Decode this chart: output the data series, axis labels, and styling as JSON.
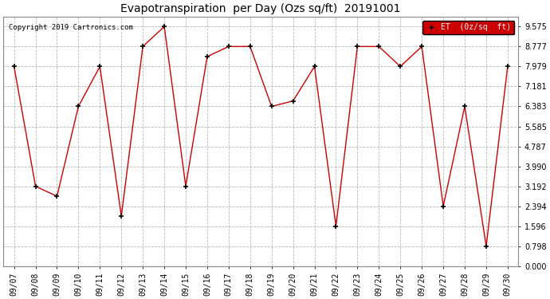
{
  "title": "Evapotranspiration  per Day (Ozs sq/ft)  20191001",
  "copyright": "Copyright 2019 Cartronics.com",
  "legend_label": "ET  (0z/sq  ft)",
  "dates": [
    "09/07",
    "09/08",
    "09/09",
    "09/10",
    "09/11",
    "09/12",
    "09/13",
    "09/14",
    "09/15",
    "09/16",
    "09/17",
    "09/18",
    "09/19",
    "09/20",
    "09/21",
    "09/22",
    "09/23",
    "09/24",
    "09/25",
    "09/26",
    "09/27",
    "09/28",
    "09/29",
    "09/30"
  ],
  "values": [
    7.979,
    3.192,
    2.793,
    6.383,
    7.979,
    2.0,
    8.777,
    9.575,
    3.192,
    8.375,
    8.777,
    8.777,
    6.383,
    6.6,
    7.979,
    1.596,
    8.777,
    8.777,
    7.979,
    8.777,
    2.394,
    6.383,
    0.798,
    7.979
  ],
  "line_color": "#cc0000",
  "marker_color": "#000000",
  "background_color": "#ffffff",
  "grid_color": "#999999",
  "yticks": [
    0.0,
    0.798,
    1.596,
    2.394,
    3.192,
    3.99,
    4.787,
    5.585,
    6.383,
    7.181,
    7.979,
    8.777,
    9.575
  ],
  "ylim": [
    0.0,
    9.975
  ],
  "title_fontsize": 10,
  "legend_bg": "#cc0000",
  "legend_text_color": "#ffffff",
  "tick_fontsize": 7,
  "fig_width": 6.9,
  "fig_height": 3.75,
  "dpi": 100
}
